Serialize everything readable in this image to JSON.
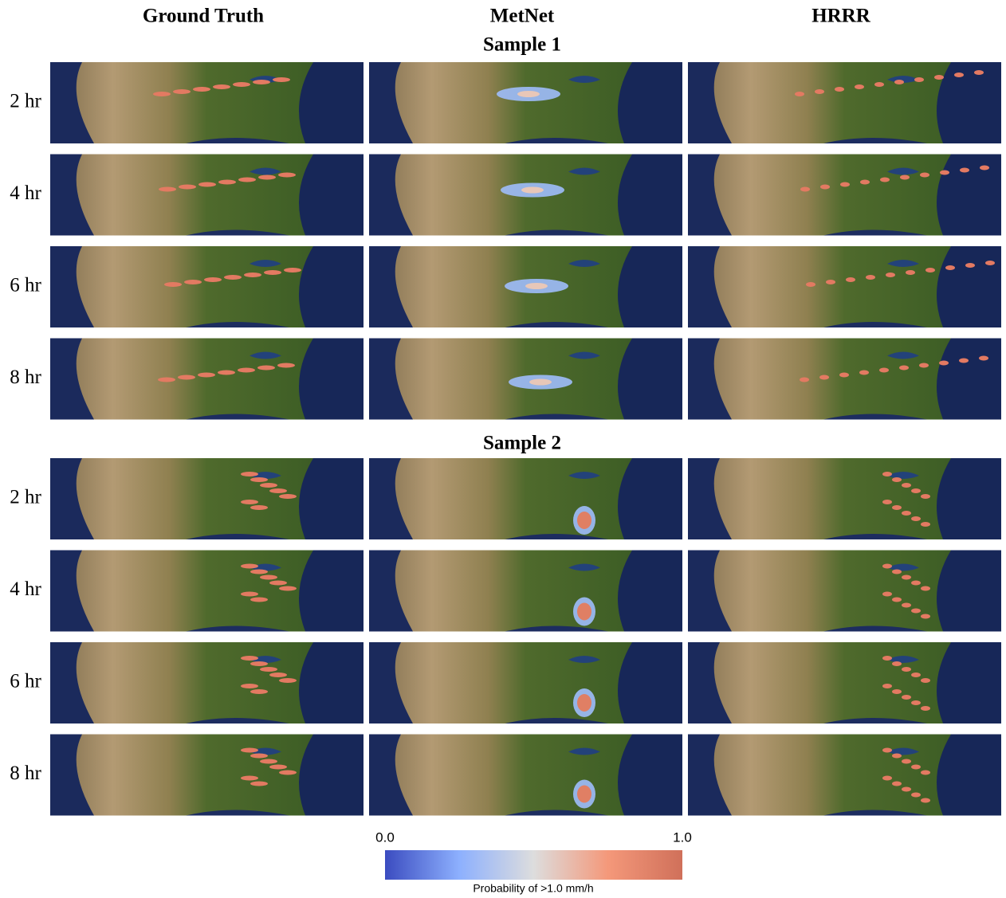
{
  "columns": [
    "Ground Truth",
    "MetNet",
    "HRRR"
  ],
  "samples": [
    {
      "title": "Sample 1",
      "rows": [
        "2 hr",
        "4 hr",
        "6 hr",
        "8 hr"
      ]
    },
    {
      "title": "Sample 2",
      "rows": [
        "2 hr",
        "4 hr",
        "6 hr",
        "8 hr"
      ]
    }
  ],
  "colorbar": {
    "ticks": [
      {
        "value": 0,
        "label": "0.0"
      },
      {
        "value": 1,
        "label": "1.0"
      }
    ],
    "label": "Probability of >1.0 mm/h"
  }
}
